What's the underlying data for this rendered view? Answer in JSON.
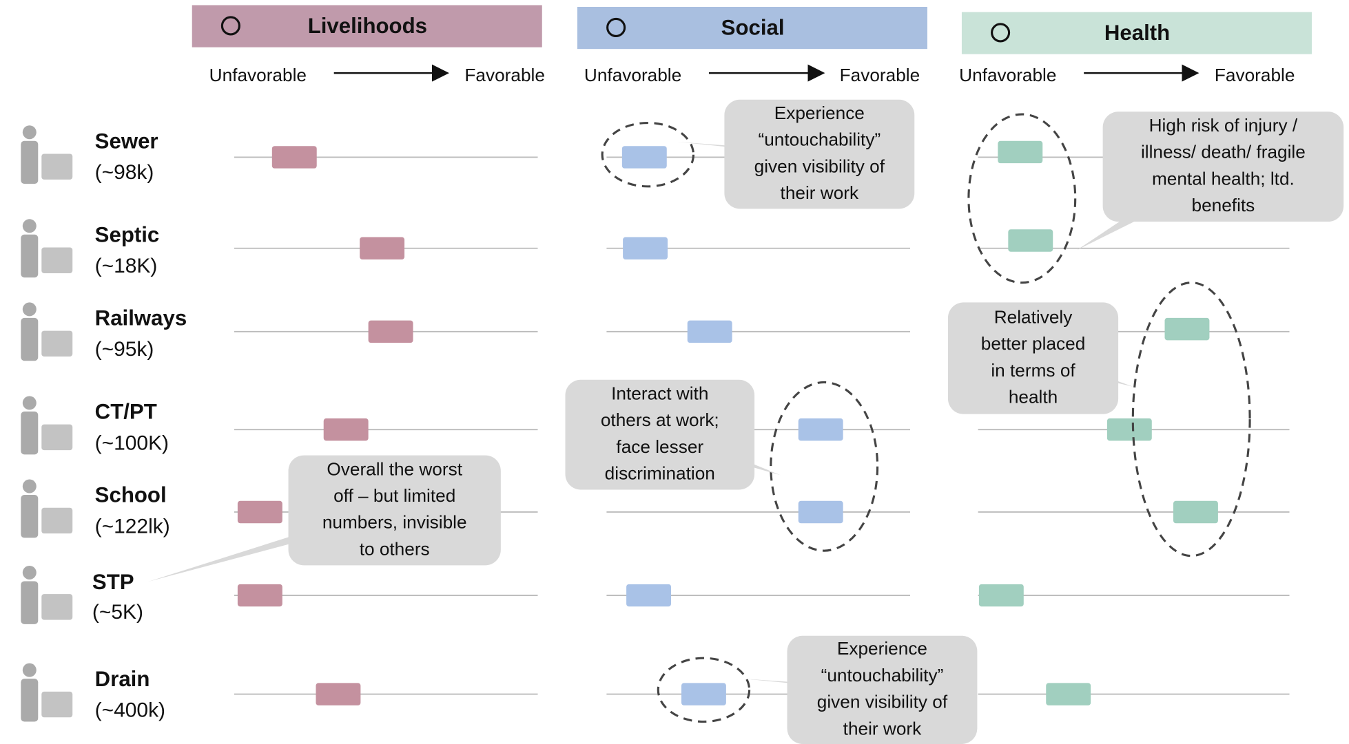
{
  "columns": [
    {
      "title": "Livelihoods",
      "from": "Unfavorable",
      "to": "Favorable"
    },
    {
      "title": "Social",
      "from": "Unfavorable",
      "to": "Favorable"
    },
    {
      "title": "Health",
      "from": "Unfavorable",
      "to": "Favorable"
    }
  ],
  "rows": [
    {
      "name": "Sewer",
      "size": "(~98k)"
    },
    {
      "name": "Septic",
      "size": "(~18K)"
    },
    {
      "name": "Railways",
      "size": "(~95k)"
    },
    {
      "name": "CT/PT",
      "size": "(~100K)"
    },
    {
      "name": "School",
      "size": "(~122lk)"
    },
    {
      "name": "STP",
      "size": "(~5K)"
    },
    {
      "name": "Drain",
      "size": "(~400k)"
    }
  ],
  "callouts": [
    {
      "lines": [
        "Experience",
        "“untouchability”",
        "given visibility of",
        "their work"
      ]
    },
    {
      "lines": [
        "High risk of injury /",
        "illness/ death/ fragile",
        "mental health; ltd.",
        "benefits"
      ]
    },
    {
      "lines": [
        "Relatively",
        "better placed",
        "in terms of",
        "health"
      ]
    },
    {
      "lines": [
        "Interact with",
        "others at work;",
        "face lesser",
        "discrimination"
      ]
    },
    {
      "lines": [
        "Overall the worst",
        "off – but limited",
        "numbers, invisible",
        "to others"
      ]
    },
    {
      "lines": [
        "Experience",
        "“untouchability”",
        "given visibility of",
        "their work"
      ]
    }
  ]
}
